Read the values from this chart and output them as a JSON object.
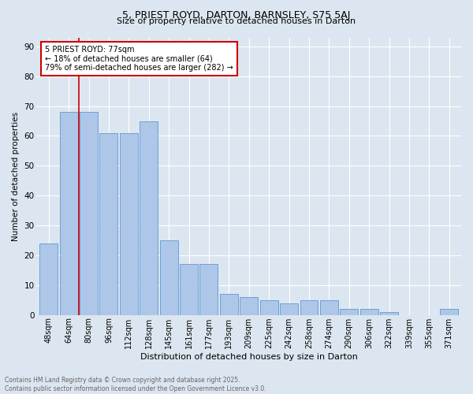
{
  "title1": "5, PRIEST ROYD, DARTON, BARNSLEY, S75 5AJ",
  "title2": "Size of property relative to detached houses in Darton",
  "xlabel": "Distribution of detached houses by size in Darton",
  "ylabel": "Number of detached properties",
  "footer": "Contains HM Land Registry data © Crown copyright and database right 2025.\nContains public sector information licensed under the Open Government Licence v3.0.",
  "categories": [
    "48sqm",
    "64sqm",
    "80sqm",
    "96sqm",
    "112sqm",
    "128sqm",
    "145sqm",
    "161sqm",
    "177sqm",
    "193sqm",
    "209sqm",
    "225sqm",
    "242sqm",
    "258sqm",
    "274sqm",
    "290sqm",
    "306sqm",
    "322sqm",
    "339sqm",
    "355sqm",
    "371sqm"
  ],
  "values": [
    24,
    68,
    68,
    61,
    61,
    65,
    25,
    17,
    17,
    7,
    6,
    5,
    4,
    5,
    5,
    2,
    2,
    1,
    0,
    0,
    2
  ],
  "bar_color": "#aec6e8",
  "bar_edge_color": "#5b9bd5",
  "background_color": "#dce6f0",
  "grid_color": "#ffffff",
  "vline_x_index": 1.5,
  "vline_color": "#cc0000",
  "annotation_text": "5 PRIEST ROYD: 77sqm\n← 18% of detached houses are smaller (64)\n79% of semi-detached houses are larger (282) →",
  "annotation_box_color": "#cc0000",
  "annotation_box_fill": "#ffffff",
  "ylim": [
    0,
    93
  ],
  "yticks": [
    0,
    10,
    20,
    30,
    40,
    50,
    60,
    70,
    80,
    90
  ],
  "title1_fontsize": 9,
  "title2_fontsize": 8,
  "ylabel_fontsize": 7.5,
  "xlabel_fontsize": 8,
  "tick_fontsize": 7,
  "annotation_fontsize": 7,
  "footer_fontsize": 5.5,
  "footer_color": "#666666"
}
